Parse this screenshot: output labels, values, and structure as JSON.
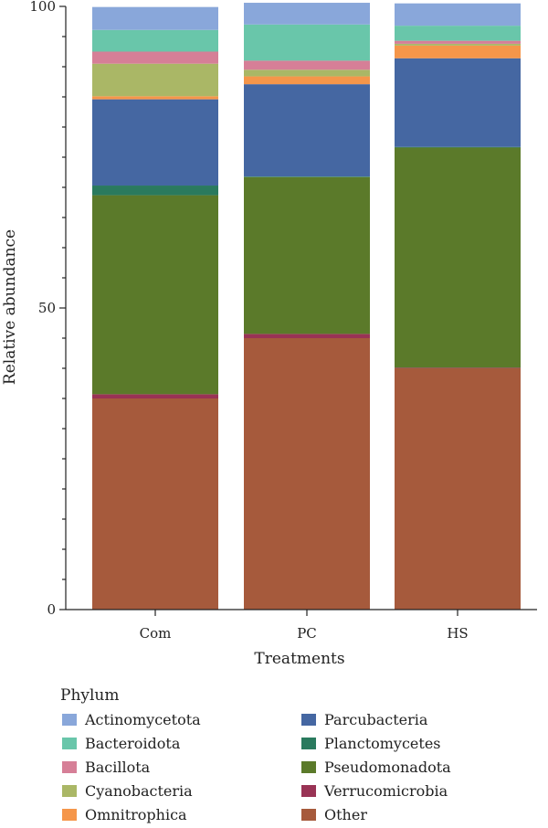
{
  "chart_data": {
    "type": "bar",
    "stacked": true,
    "categories": [
      "Com",
      "PC",
      "HS"
    ],
    "xlabel": "Treatments",
    "ylabel": "Relative abundance",
    "ylim": [
      0,
      100
    ],
    "yticks": [
      0,
      50,
      100
    ],
    "grid": false,
    "legend_title": "Phylum",
    "legend_position": "bottom",
    "series": [
      {
        "name": "Other",
        "color": "#A65A3C",
        "values": [
          35.0,
          45.0,
          40.0
        ]
      },
      {
        "name": "Verrucomicrobia",
        "color": "#993355",
        "values": [
          0.7,
          0.7,
          0.1
        ]
      },
      {
        "name": "Pseudomonadota",
        "color": "#5B7A2A",
        "values": [
          33.0,
          26.0,
          36.5
        ]
      },
      {
        "name": "Planctomycetes",
        "color": "#2A7A5E",
        "values": [
          1.6,
          0.1,
          0.1
        ]
      },
      {
        "name": "Parcubacteria",
        "color": "#4567A2",
        "values": [
          14.3,
          15.3,
          14.7
        ]
      },
      {
        "name": "Omnitrophica",
        "color": "#F5964A",
        "values": [
          0.5,
          1.3,
          2.1
        ]
      },
      {
        "name": "Cyanobacteria",
        "color": "#AAB766",
        "values": [
          5.4,
          1.1,
          0.3
        ]
      },
      {
        "name": "Bacillota",
        "color": "#D67F97",
        "values": [
          2.0,
          1.5,
          0.5
        ]
      },
      {
        "name": "Bacteroidota",
        "color": "#69C6AA",
        "values": [
          3.6,
          6.0,
          2.5
        ]
      },
      {
        "name": "Actinomycetota",
        "color": "#89A7DA",
        "values": [
          3.8,
          3.6,
          3.7
        ]
      }
    ],
    "legend_entries": [
      "Actinomycetota",
      "Bacteroidota",
      "Bacillota",
      "Cyanobacteria",
      "Omnitrophica",
      "Parcubacteria",
      "Planctomycetes",
      "Pseudomonadota",
      "Verrucomicrobia",
      "Other"
    ]
  }
}
